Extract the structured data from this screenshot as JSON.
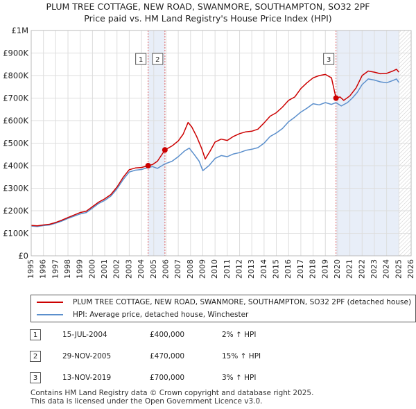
{
  "title": "PLUM TREE COTTAGE, NEW ROAD, SWANMORE, SOUTHAMPTON, SO32 2PF",
  "subtitle": "Price paid vs. HM Land Registry's House Price Index (HPI)",
  "colors": {
    "property_line": "#cc0000",
    "hpi_line": "#5b8fcc",
    "shade": "#e8eef8",
    "marker_vline": "#e06060",
    "grid": "#dddddd"
  },
  "chart_data": {
    "type": "line",
    "title": "PLUM TREE COTTAGE, NEW ROAD, SWANMORE, SOUTHAMPTON, SO32 2PF",
    "subtitle": "Price paid vs. HM Land Registry's House Price Index (HPI)",
    "xlabel": "",
    "ylabel": "",
    "xlim": [
      1995,
      2026
    ],
    "ylim": [
      0,
      1000000
    ],
    "grid": true,
    "x_ticks": [
      "1995",
      "1996",
      "1997",
      "1998",
      "1999",
      "2000",
      "2001",
      "2002",
      "2003",
      "2004",
      "2005",
      "2006",
      "2007",
      "2008",
      "2009",
      "2010",
      "2011",
      "2012",
      "2013",
      "2014",
      "2015",
      "2016",
      "2017",
      "2018",
      "2019",
      "2020",
      "2021",
      "2022",
      "2023",
      "2024",
      "2025",
      "2026"
    ],
    "y_ticks": [
      {
        "value": 0,
        "label": "£0"
      },
      {
        "value": 100000,
        "label": "£100K"
      },
      {
        "value": 200000,
        "label": "£200K"
      },
      {
        "value": 300000,
        "label": "£300K"
      },
      {
        "value": 400000,
        "label": "£400K"
      },
      {
        "value": 500000,
        "label": "£500K"
      },
      {
        "value": 600000,
        "label": "£600K"
      },
      {
        "value": 700000,
        "label": "£700K"
      },
      {
        "value": 800000,
        "label": "£800K"
      },
      {
        "value": 900000,
        "label": "£900K"
      },
      {
        "value": 1000000,
        "label": "£1M"
      }
    ],
    "shaded_ranges": [
      [
        2004.54,
        2005.91
      ],
      [
        2019.87,
        2025.0
      ]
    ],
    "hatched_range_from": 2025.0,
    "series": [
      {
        "name": "PLUM TREE COTTAGE, NEW ROAD, SWANMORE, SOUTHAMPTON, SO32 2PF (detached house)",
        "color": "#cc0000",
        "points": [
          [
            1995.0,
            135000
          ],
          [
            1995.5,
            133000
          ],
          [
            1996.0,
            137000
          ],
          [
            1996.5,
            140000
          ],
          [
            1997.0,
            148000
          ],
          [
            1997.5,
            158000
          ],
          [
            1998.0,
            170000
          ],
          [
            1998.5,
            181000
          ],
          [
            1999.0,
            192000
          ],
          [
            1999.5,
            198000
          ],
          [
            2000.0,
            218000
          ],
          [
            2000.5,
            238000
          ],
          [
            2001.0,
            253000
          ],
          [
            2001.5,
            272000
          ],
          [
            2002.0,
            305000
          ],
          [
            2002.5,
            348000
          ],
          [
            2003.0,
            382000
          ],
          [
            2003.5,
            390000
          ],
          [
            2004.0,
            392000
          ],
          [
            2004.54,
            400000
          ],
          [
            2004.9,
            405000
          ],
          [
            2005.3,
            420000
          ],
          [
            2005.91,
            470000
          ],
          [
            2006.5,
            488000
          ],
          [
            2007.0,
            510000
          ],
          [
            2007.4,
            540000
          ],
          [
            2007.8,
            592000
          ],
          [
            2008.1,
            572000
          ],
          [
            2008.5,
            530000
          ],
          [
            2008.9,
            478000
          ],
          [
            2009.2,
            430000
          ],
          [
            2009.6,
            465000
          ],
          [
            2010.0,
            505000
          ],
          [
            2010.5,
            518000
          ],
          [
            2011.0,
            512000
          ],
          [
            2011.5,
            530000
          ],
          [
            2012.0,
            542000
          ],
          [
            2012.5,
            550000
          ],
          [
            2013.0,
            553000
          ],
          [
            2013.5,
            562000
          ],
          [
            2014.0,
            590000
          ],
          [
            2014.5,
            620000
          ],
          [
            2015.0,
            635000
          ],
          [
            2015.5,
            660000
          ],
          [
            2016.0,
            690000
          ],
          [
            2016.5,
            705000
          ],
          [
            2017.0,
            742000
          ],
          [
            2017.5,
            768000
          ],
          [
            2018.0,
            790000
          ],
          [
            2018.5,
            800000
          ],
          [
            2019.0,
            805000
          ],
          [
            2019.5,
            790000
          ],
          [
            2019.87,
            700000
          ],
          [
            2020.2,
            705000
          ],
          [
            2020.5,
            690000
          ],
          [
            2021.0,
            710000
          ],
          [
            2021.5,
            745000
          ],
          [
            2022.0,
            800000
          ],
          [
            2022.5,
            820000
          ],
          [
            2023.0,
            815000
          ],
          [
            2023.5,
            808000
          ],
          [
            2024.0,
            810000
          ],
          [
            2024.5,
            820000
          ],
          [
            2024.8,
            828000
          ],
          [
            2025.0,
            815000
          ]
        ]
      },
      {
        "name": "HPI: Average price, detached house, Winchester",
        "color": "#5b8fcc",
        "points": [
          [
            1995.0,
            132000
          ],
          [
            1995.5,
            130000
          ],
          [
            1996.0,
            134000
          ],
          [
            1996.5,
            137000
          ],
          [
            1997.0,
            145000
          ],
          [
            1997.5,
            154000
          ],
          [
            1998.0,
            166000
          ],
          [
            1998.5,
            176000
          ],
          [
            1999.0,
            186000
          ],
          [
            1999.5,
            192000
          ],
          [
            2000.0,
            212000
          ],
          [
            2000.5,
            232000
          ],
          [
            2001.0,
            246000
          ],
          [
            2001.5,
            265000
          ],
          [
            2002.0,
            297000
          ],
          [
            2002.5,
            338000
          ],
          [
            2003.0,
            372000
          ],
          [
            2003.5,
            380000
          ],
          [
            2004.0,
            383000
          ],
          [
            2004.54,
            392000
          ],
          [
            2004.9,
            396000
          ],
          [
            2005.3,
            388000
          ],
          [
            2005.91,
            408000
          ],
          [
            2006.5,
            420000
          ],
          [
            2007.0,
            440000
          ],
          [
            2007.5,
            465000
          ],
          [
            2007.9,
            478000
          ],
          [
            2008.3,
            450000
          ],
          [
            2008.7,
            420000
          ],
          [
            2009.0,
            378000
          ],
          [
            2009.5,
            400000
          ],
          [
            2010.0,
            432000
          ],
          [
            2010.5,
            445000
          ],
          [
            2011.0,
            440000
          ],
          [
            2011.5,
            452000
          ],
          [
            2012.0,
            458000
          ],
          [
            2012.5,
            468000
          ],
          [
            2013.0,
            473000
          ],
          [
            2013.5,
            480000
          ],
          [
            2014.0,
            500000
          ],
          [
            2014.5,
            530000
          ],
          [
            2015.0,
            545000
          ],
          [
            2015.5,
            565000
          ],
          [
            2016.0,
            595000
          ],
          [
            2016.5,
            615000
          ],
          [
            2017.0,
            638000
          ],
          [
            2017.5,
            655000
          ],
          [
            2018.0,
            675000
          ],
          [
            2018.5,
            670000
          ],
          [
            2019.0,
            680000
          ],
          [
            2019.5,
            672000
          ],
          [
            2019.87,
            680000
          ],
          [
            2020.3,
            665000
          ],
          [
            2020.8,
            680000
          ],
          [
            2021.2,
            700000
          ],
          [
            2021.6,
            725000
          ],
          [
            2022.0,
            760000
          ],
          [
            2022.5,
            785000
          ],
          [
            2023.0,
            780000
          ],
          [
            2023.5,
            772000
          ],
          [
            2024.0,
            768000
          ],
          [
            2024.5,
            778000
          ],
          [
            2024.8,
            785000
          ],
          [
            2025.0,
            770000
          ]
        ]
      }
    ],
    "sales": [
      {
        "id": "1",
        "x": 2004.54,
        "y": 400000
      },
      {
        "id": "2",
        "x": 2005.91,
        "y": 470000
      },
      {
        "id": "3",
        "x": 2019.87,
        "y": 700000
      }
    ]
  },
  "legend": {
    "property": "PLUM TREE COTTAGE, NEW ROAD, SWANMORE, SOUTHAMPTON, SO32 2PF (detached house)",
    "hpi": "HPI: Average price, detached house, Winchester"
  },
  "sales_table": [
    {
      "id": "1",
      "date": "15-JUL-2004",
      "price": "£400,000",
      "hpi": "2% ↑ HPI"
    },
    {
      "id": "2",
      "date": "29-NOV-2005",
      "price": "£470,000",
      "hpi": "15% ↑ HPI"
    },
    {
      "id": "3",
      "date": "13-NOV-2019",
      "price": "£700,000",
      "hpi": "3% ↑ HPI"
    }
  ],
  "footer": {
    "line1": "Contains HM Land Registry data © Crown copyright and database right 2025.",
    "line2": "This data is licensed under the Open Government Licence v3.0."
  }
}
